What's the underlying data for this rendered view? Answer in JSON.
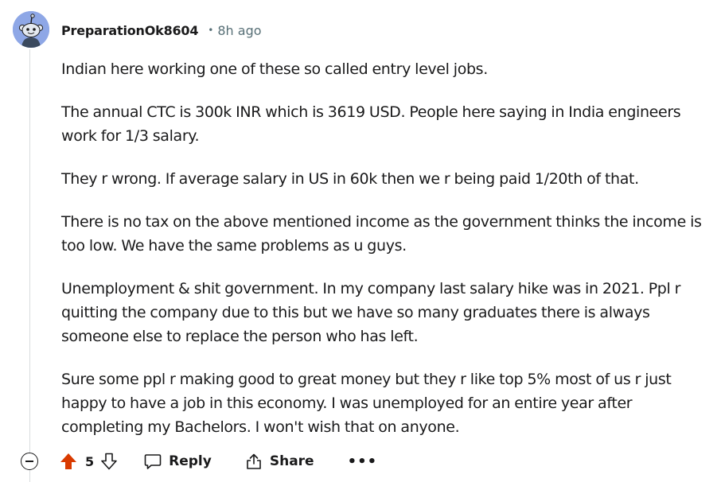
{
  "comment": {
    "author": "PreparationOk8604",
    "separator": "•",
    "time_ago": "8h ago",
    "paragraphs": [
      "Indian here working one of these so called entry level jobs.",
      "The annual CTC is 300k INR which is 3619 USD. People here saying in India engineers\nwork for 1/3 salary.",
      "They r wrong. If average salary in US in 60k then we r being paid 1/20th of that.",
      "There is no tax on the above mentioned income as the government thinks the income is\ntoo low. We have the same problems as u guys.",
      "Unemployment & shit government. In my company last salary hike was in 2021. Ppl r\nquitting the company due to this but we have so many graduates there is always\nsomeone else to replace the person who has left.",
      "Sure some ppl r making good to great money but they r like top 5% most of us r just\nhappy to have a job in this economy. I was unemployed for an entire year after\ncompleting my Bachelors. I won't wish that on anyone."
    ]
  },
  "actions": {
    "score": "5",
    "reply_label": "Reply",
    "share_label": "Share",
    "more_label": "•••"
  },
  "icons": {
    "avatar": "snoo-avatar-icon",
    "collapse": "collapse-icon",
    "upvote": "upvote-icon",
    "downvote": "downvote-icon",
    "reply": "comment-bubble-icon",
    "share": "share-icon",
    "more": "more-options-icon"
  },
  "colors": {
    "upvote_active": "#d93a00",
    "avatar_bg": "#8ea7e6",
    "meta_text": "#576f76"
  }
}
